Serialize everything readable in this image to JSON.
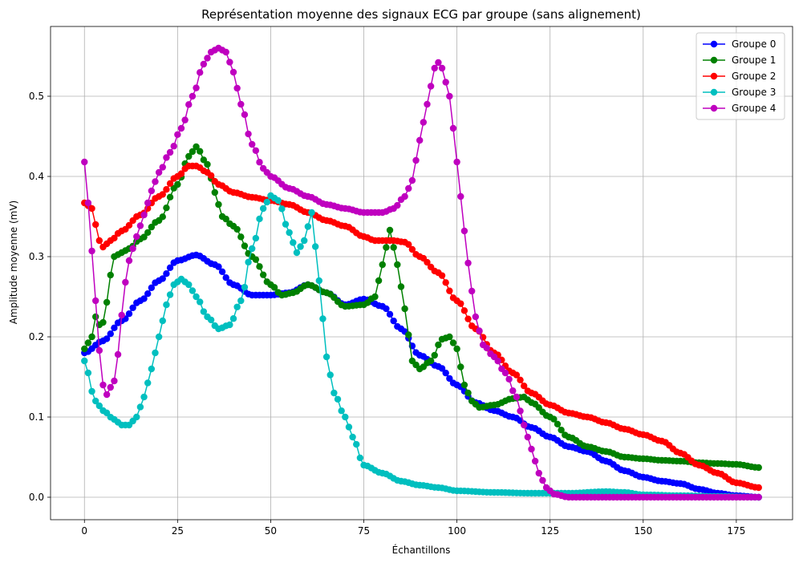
{
  "chart_data": {
    "type": "line",
    "title": "Représentation moyenne des signaux ECG par groupe (sans alignement)",
    "xlabel": "Échantillons",
    "ylabel": "Amplitude moyenne (mV)",
    "xlim": [
      -9.1,
      190.1
    ],
    "ylim": [
      -0.028,
      0.587
    ],
    "xticks": [
      0,
      25,
      50,
      75,
      100,
      125,
      150,
      175
    ],
    "yticks": [
      0.0,
      0.1,
      0.2,
      0.3,
      0.4,
      0.5
    ],
    "xtick_labels": [
      "0",
      "25",
      "50",
      "75",
      "100",
      "125",
      "150",
      "175"
    ],
    "ytick_labels": [
      "0.0",
      "0.1",
      "0.2",
      "0.3",
      "0.4",
      "0.5"
    ],
    "grid": true,
    "legend_position": "top-right",
    "x_start": 0,
    "x_end": 181,
    "series": [
      {
        "name": "Groupe 0",
        "color": "#0000ff",
        "keypoints": [
          [
            0,
            0.18
          ],
          [
            5,
            0.195
          ],
          [
            10,
            0.22
          ],
          [
            15,
            0.245
          ],
          [
            20,
            0.27
          ],
          [
            25,
            0.295
          ],
          [
            30,
            0.302
          ],
          [
            35,
            0.29
          ],
          [
            40,
            0.265
          ],
          [
            45,
            0.252
          ],
          [
            50,
            0.252
          ],
          [
            55,
            0.255
          ],
          [
            60,
            0.265
          ],
          [
            65,
            0.255
          ],
          [
            70,
            0.24
          ],
          [
            75,
            0.247
          ],
          [
            80,
            0.238
          ],
          [
            85,
            0.21
          ],
          [
            90,
            0.177
          ],
          [
            95,
            0.163
          ],
          [
            100,
            0.14
          ],
          [
            105,
            0.118
          ],
          [
            110,
            0.108
          ],
          [
            115,
            0.1
          ],
          [
            120,
            0.087
          ],
          [
            125,
            0.075
          ],
          [
            130,
            0.063
          ],
          [
            135,
            0.057
          ],
          [
            140,
            0.045
          ],
          [
            145,
            0.033
          ],
          [
            150,
            0.025
          ],
          [
            155,
            0.02
          ],
          [
            160,
            0.017
          ],
          [
            165,
            0.01
          ],
          [
            170,
            0.005
          ],
          [
            175,
            0.002
          ],
          [
            181,
            0.0
          ]
        ]
      },
      {
        "name": "Groupe 1",
        "color": "#008000",
        "keypoints": [
          [
            0,
            0.185
          ],
          [
            2,
            0.2
          ],
          [
            3,
            0.225
          ],
          [
            4,
            0.215
          ],
          [
            5,
            0.218
          ],
          [
            6,
            0.243
          ],
          [
            7,
            0.277
          ],
          [
            8,
            0.3
          ],
          [
            10,
            0.305
          ],
          [
            12,
            0.31
          ],
          [
            15,
            0.322
          ],
          [
            20,
            0.345
          ],
          [
            25,
            0.39
          ],
          [
            28,
            0.425
          ],
          [
            30,
            0.437
          ],
          [
            33,
            0.415
          ],
          [
            35,
            0.38
          ],
          [
            37,
            0.35
          ],
          [
            40,
            0.338
          ],
          [
            45,
            0.3
          ],
          [
            50,
            0.265
          ],
          [
            53,
            0.252
          ],
          [
            56,
            0.255
          ],
          [
            60,
            0.265
          ],
          [
            65,
            0.255
          ],
          [
            70,
            0.238
          ],
          [
            75,
            0.24
          ],
          [
            78,
            0.25
          ],
          [
            80,
            0.29
          ],
          [
            82,
            0.333
          ],
          [
            84,
            0.29
          ],
          [
            86,
            0.235
          ],
          [
            88,
            0.17
          ],
          [
            90,
            0.16
          ],
          [
            93,
            0.17
          ],
          [
            96,
            0.197
          ],
          [
            98,
            0.2
          ],
          [
            100,
            0.185
          ],
          [
            102,
            0.14
          ],
          [
            104,
            0.12
          ],
          [
            106,
            0.112
          ],
          [
            110,
            0.115
          ],
          [
            115,
            0.123
          ],
          [
            118,
            0.125
          ],
          [
            120,
            0.118
          ],
          [
            125,
            0.1
          ],
          [
            130,
            0.075
          ],
          [
            135,
            0.063
          ],
          [
            140,
            0.057
          ],
          [
            145,
            0.05
          ],
          [
            150,
            0.048
          ],
          [
            155,
            0.046
          ],
          [
            160,
            0.045
          ],
          [
            165,
            0.043
          ],
          [
            170,
            0.042
          ],
          [
            175,
            0.041
          ],
          [
            181,
            0.037
          ]
        ]
      },
      {
        "name": "Groupe 2",
        "color": "#ff0000",
        "keypoints": [
          [
            0,
            0.367
          ],
          [
            2,
            0.36
          ],
          [
            3,
            0.34
          ],
          [
            4,
            0.32
          ],
          [
            5,
            0.312
          ],
          [
            7,
            0.32
          ],
          [
            10,
            0.332
          ],
          [
            15,
            0.352
          ],
          [
            20,
            0.375
          ],
          [
            25,
            0.4
          ],
          [
            28,
            0.413
          ],
          [
            30,
            0.413
          ],
          [
            33,
            0.405
          ],
          [
            36,
            0.39
          ],
          [
            40,
            0.38
          ],
          [
            45,
            0.374
          ],
          [
            50,
            0.37
          ],
          [
            55,
            0.365
          ],
          [
            60,
            0.355
          ],
          [
            65,
            0.345
          ],
          [
            70,
            0.338
          ],
          [
            75,
            0.325
          ],
          [
            78,
            0.32
          ],
          [
            83,
            0.32
          ],
          [
            86,
            0.318
          ],
          [
            90,
            0.3
          ],
          [
            95,
            0.28
          ],
          [
            100,
            0.245
          ],
          [
            105,
            0.21
          ],
          [
            110,
            0.18
          ],
          [
            115,
            0.155
          ],
          [
            120,
            0.13
          ],
          [
            125,
            0.115
          ],
          [
            130,
            0.105
          ],
          [
            135,
            0.1
          ],
          [
            140,
            0.093
          ],
          [
            145,
            0.085
          ],
          [
            150,
            0.078
          ],
          [
            155,
            0.07
          ],
          [
            160,
            0.055
          ],
          [
            165,
            0.04
          ],
          [
            170,
            0.03
          ],
          [
            175,
            0.018
          ],
          [
            181,
            0.012
          ]
        ]
      },
      {
        "name": "Groupe 3",
        "color": "#00bfbf",
        "keypoints": [
          [
            0,
            0.17
          ],
          [
            1,
            0.155
          ],
          [
            2,
            0.132
          ],
          [
            3,
            0.12
          ],
          [
            5,
            0.108
          ],
          [
            8,
            0.097
          ],
          [
            10,
            0.09
          ],
          [
            12,
            0.09
          ],
          [
            14,
            0.1
          ],
          [
            16,
            0.125
          ],
          [
            18,
            0.16
          ],
          [
            20,
            0.2
          ],
          [
            22,
            0.24
          ],
          [
            24,
            0.265
          ],
          [
            26,
            0.272
          ],
          [
            28,
            0.265
          ],
          [
            30,
            0.25
          ],
          [
            33,
            0.225
          ],
          [
            36,
            0.21
          ],
          [
            39,
            0.215
          ],
          [
            42,
            0.245
          ],
          [
            45,
            0.31
          ],
          [
            48,
            0.36
          ],
          [
            50,
            0.376
          ],
          [
            52,
            0.37
          ],
          [
            55,
            0.33
          ],
          [
            57,
            0.305
          ],
          [
            59,
            0.32
          ],
          [
            61,
            0.355
          ],
          [
            63,
            0.27
          ],
          [
            65,
            0.175
          ],
          [
            67,
            0.13
          ],
          [
            70,
            0.1
          ],
          [
            72,
            0.075
          ],
          [
            75,
            0.04
          ],
          [
            80,
            0.03
          ],
          [
            85,
            0.02
          ],
          [
            90,
            0.015
          ],
          [
            95,
            0.012
          ],
          [
            100,
            0.008
          ],
          [
            110,
            0.006
          ],
          [
            120,
            0.005
          ],
          [
            125,
            0.005
          ],
          [
            130,
            0.005
          ],
          [
            140,
            0.007
          ],
          [
            145,
            0.006
          ],
          [
            150,
            0.003
          ],
          [
            160,
            0.002
          ],
          [
            170,
            0.001
          ],
          [
            181,
            0.0
          ]
        ]
      },
      {
        "name": "Groupe 4",
        "color": "#bf00bf",
        "keypoints": [
          [
            0,
            0.418
          ],
          [
            1,
            0.367
          ],
          [
            2,
            0.307
          ],
          [
            3,
            0.245
          ],
          [
            4,
            0.183
          ],
          [
            5,
            0.14
          ],
          [
            6,
            0.128
          ],
          [
            7,
            0.137
          ],
          [
            8,
            0.145
          ],
          [
            9,
            0.178
          ],
          [
            10,
            0.227
          ],
          [
            11,
            0.268
          ],
          [
            12,
            0.295
          ],
          [
            14,
            0.325
          ],
          [
            16,
            0.352
          ],
          [
            18,
            0.382
          ],
          [
            20,
            0.405
          ],
          [
            23,
            0.43
          ],
          [
            26,
            0.46
          ],
          [
            29,
            0.5
          ],
          [
            32,
            0.54
          ],
          [
            34,
            0.555
          ],
          [
            36,
            0.56
          ],
          [
            38,
            0.555
          ],
          [
            40,
            0.53
          ],
          [
            42,
            0.49
          ],
          [
            45,
            0.44
          ],
          [
            48,
            0.41
          ],
          [
            50,
            0.4
          ],
          [
            55,
            0.385
          ],
          [
            60,
            0.375
          ],
          [
            65,
            0.365
          ],
          [
            70,
            0.36
          ],
          [
            75,
            0.355
          ],
          [
            80,
            0.355
          ],
          [
            83,
            0.36
          ],
          [
            86,
            0.375
          ],
          [
            88,
            0.395
          ],
          [
            90,
            0.445
          ],
          [
            92,
            0.49
          ],
          [
            94,
            0.535
          ],
          [
            95,
            0.542
          ],
          [
            96,
            0.535
          ],
          [
            98,
            0.5
          ],
          [
            99,
            0.46
          ],
          [
            100,
            0.418
          ],
          [
            101,
            0.375
          ],
          [
            102,
            0.332
          ],
          [
            103,
            0.292
          ],
          [
            104,
            0.257
          ],
          [
            105,
            0.225
          ],
          [
            107,
            0.19
          ],
          [
            110,
            0.175
          ],
          [
            113,
            0.155
          ],
          [
            116,
            0.125
          ],
          [
            118,
            0.09
          ],
          [
            120,
            0.06
          ],
          [
            122,
            0.03
          ],
          [
            124,
            0.012
          ],
          [
            126,
            0.004
          ],
          [
            130,
            0.0
          ],
          [
            181,
            0.0
          ]
        ]
      }
    ]
  }
}
